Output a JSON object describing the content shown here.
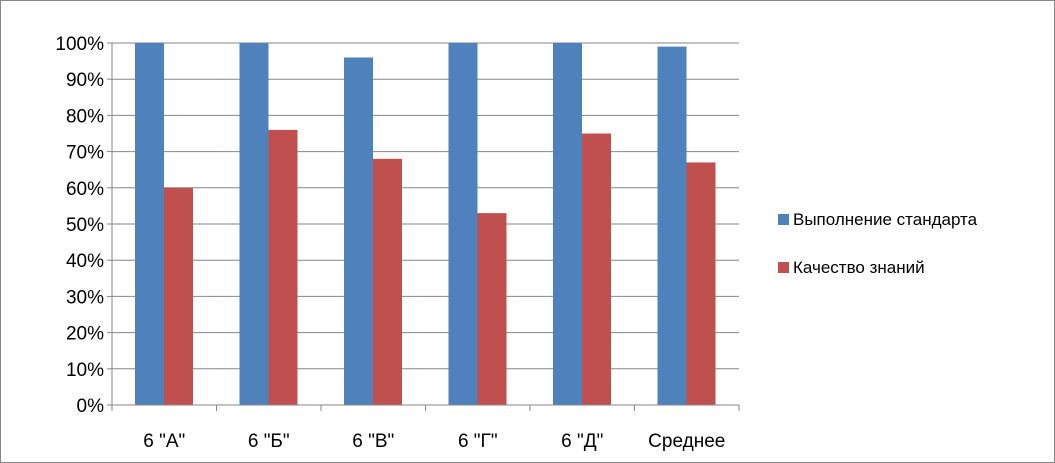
{
  "chart_data": {
    "type": "bar",
    "categories": [
      "6 \"А\"",
      "6 \"Б\"",
      "6 \"В\"",
      "6 \"Г\"",
      "6 \"Д\"",
      "Среднее"
    ],
    "series": [
      {
        "name": "Выполнение стандарта",
        "color": "#4F81BD",
        "values": [
          100,
          100,
          96,
          100,
          100,
          99
        ]
      },
      {
        "name": "Качество знаний",
        "color": "#C0504D",
        "values": [
          60,
          76,
          68,
          53,
          75,
          67
        ]
      }
    ],
    "y_ticks": [
      "0%",
      "10%",
      "20%",
      "30%",
      "40%",
      "50%",
      "60%",
      "70%",
      "80%",
      "90%",
      "100%"
    ],
    "ylim": [
      0,
      100
    ],
    "y_unit": "%",
    "grid": true,
    "legend_position": "right",
    "title": "",
    "xlabel": "",
    "ylabel": ""
  }
}
